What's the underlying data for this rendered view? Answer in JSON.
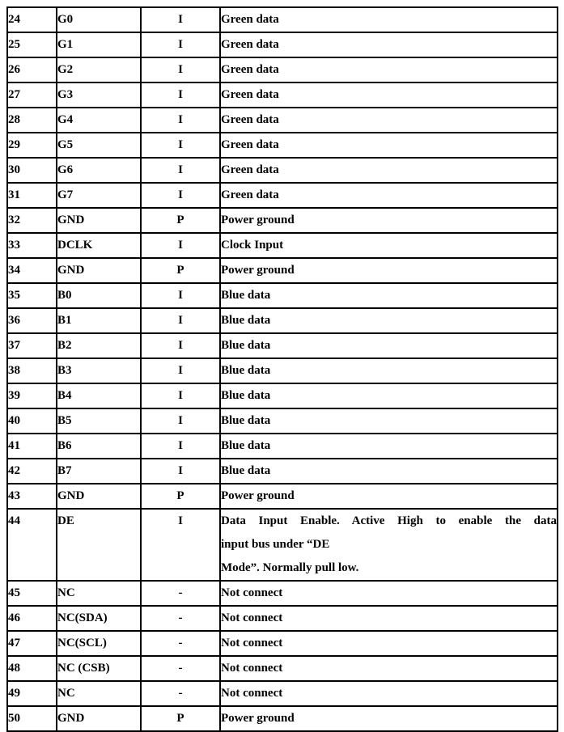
{
  "page": {
    "background_color": "#ffffff",
    "text_color": "#000000",
    "border_color": "#000000"
  },
  "table": {
    "columns": [
      "pin_number",
      "pin_name",
      "io_type",
      "description"
    ],
    "rows": [
      {
        "pin": "24",
        "name": "G0",
        "type": "I",
        "description": "Green data"
      },
      {
        "pin": "25",
        "name": "G1",
        "type": "I",
        "description": "Green data"
      },
      {
        "pin": "26",
        "name": "G2",
        "type": "I",
        "description": "Green data"
      },
      {
        "pin": "27",
        "name": "G3",
        "type": "I",
        "description": "Green data"
      },
      {
        "pin": "28",
        "name": "G4",
        "type": "I",
        "description": "Green data"
      },
      {
        "pin": "29",
        "name": "G5",
        "type": "I",
        "description": "Green data"
      },
      {
        "pin": "30",
        "name": "G6",
        "type": "I",
        "description": "Green data"
      },
      {
        "pin": "31",
        "name": "G7",
        "type": "I",
        "description": "Green data"
      },
      {
        "pin": "32",
        "name": "GND",
        "type": "P",
        "description": "Power ground"
      },
      {
        "pin": "33",
        "name": "DCLK",
        "type": "I",
        "description": "Clock Input"
      },
      {
        "pin": "34",
        "name": "GND",
        "type": "P",
        "description": "Power ground"
      },
      {
        "pin": "35",
        "name": "B0",
        "type": "I",
        "description": "Blue data"
      },
      {
        "pin": "36",
        "name": "B1",
        "type": "I",
        "description": "Blue data"
      },
      {
        "pin": "37",
        "name": "B2",
        "type": "I",
        "description": "Blue data"
      },
      {
        "pin": "38",
        "name": "B3",
        "type": "I",
        "description": "Blue data"
      },
      {
        "pin": "39",
        "name": "B4",
        "type": "I",
        "description": "Blue data"
      },
      {
        "pin": "40",
        "name": "B5",
        "type": "I",
        "description": "Blue data"
      },
      {
        "pin": "41",
        "name": "B6",
        "type": "I",
        "description": "Blue data"
      },
      {
        "pin": "42",
        "name": "B7",
        "type": "I",
        "description": "Blue data"
      },
      {
        "pin": "43",
        "name": "GND",
        "type": "P",
        "description": "Power ground"
      },
      {
        "pin": "44",
        "name": "DE",
        "type": "I",
        "description_lines": [
          "Data Input Enable. Active High to enable the data",
          "input bus under “DE",
          "Mode”. Normally pull low."
        ]
      },
      {
        "pin": "45",
        "name": "NC",
        "type": "-",
        "description": "Not connect"
      },
      {
        "pin": "46",
        "name": "NC(SDA)",
        "type": "-",
        "description": "Not connect"
      },
      {
        "pin": "47",
        "name": "NC(SCL)",
        "type": "-",
        "description": "Not connect"
      },
      {
        "pin": "48",
        "name": "NC (CSB)",
        "type": "-",
        "description": "Not connect"
      },
      {
        "pin": "49",
        "name": "NC",
        "type": "-",
        "description": "Not connect"
      },
      {
        "pin": "50",
        "name": "GND",
        "type": "P",
        "description": "Power ground"
      }
    ]
  }
}
